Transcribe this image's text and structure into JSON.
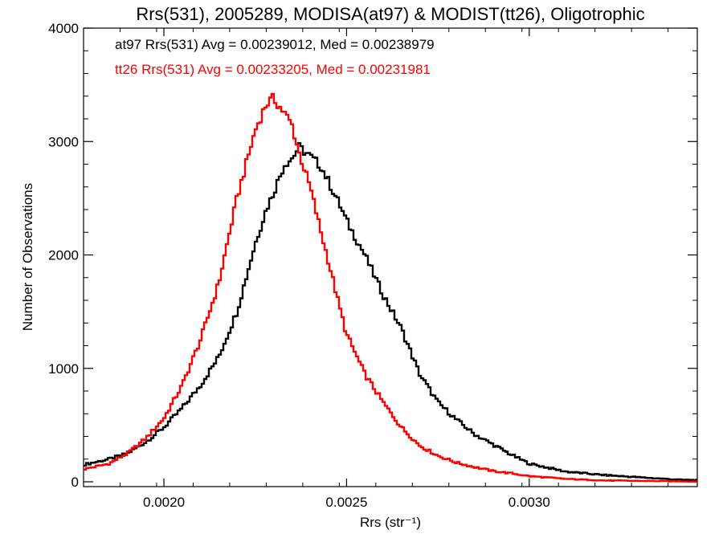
{
  "chart_data": {
    "type": "line",
    "title": "Rrs(531), 2005289, MODISA(at97) & MODIST(tt26), Oligotrophic",
    "xlabel": "Rrs (str⁻¹)",
    "ylabel": "Number of Observations",
    "xlim": [
      0.00178,
      0.00346
    ],
    "ylim": [
      0,
      4000
    ],
    "x_ticks": [
      0.002,
      0.0025,
      0.003
    ],
    "x_tick_labels": [
      "0.0020",
      "0.0025",
      "0.0030"
    ],
    "y_ticks": [
      0,
      1000,
      2000,
      3000,
      4000
    ],
    "y_tick_labels": [
      "0",
      "1000",
      "2000",
      "3000",
      "4000"
    ],
    "legend_placement": "top-left",
    "x": [
      0.00178,
      0.00185,
      0.0019,
      0.00195,
      0.002,
      0.00205,
      0.0021,
      0.00215,
      0.0022,
      0.00225,
      0.00228,
      0.0023,
      0.00233,
      0.00235,
      0.00237,
      0.0024,
      0.00243,
      0.00245,
      0.00248,
      0.0025,
      0.00255,
      0.0026,
      0.00265,
      0.0027,
      0.00275,
      0.0028,
      0.00285,
      0.0029,
      0.00295,
      0.003,
      0.0031,
      0.0032,
      0.0033,
      0.0034,
      0.00346
    ],
    "series": [
      {
        "name": "at97",
        "color": "#000000",
        "annotation": "at97 Rrs(531) Avg = 0.00239012, Med = 0.00238979",
        "values": [
          150,
          200,
          250,
          350,
          480,
          650,
          850,
          1100,
          1500,
          2100,
          2400,
          2550,
          2800,
          2850,
          2950,
          2870,
          2780,
          2650,
          2450,
          2300,
          2000,
          1650,
          1350,
          950,
          700,
          550,
          420,
          330,
          240,
          160,
          90,
          60,
          40,
          20,
          15
        ]
      },
      {
        "name": "tt26",
        "color": "#ff0000",
        "annotation": "tt26 Rrs(531) Avg = 0.00233205, Med = 0.00231981",
        "values": [
          110,
          160,
          250,
          380,
          560,
          850,
          1250,
          1750,
          2500,
          3100,
          3330,
          3380,
          3250,
          3150,
          2900,
          2600,
          2200,
          1950,
          1550,
          1300,
          950,
          700,
          480,
          320,
          230,
          170,
          130,
          95,
          75,
          50,
          25,
          12,
          8,
          4,
          2
        ]
      }
    ]
  }
}
